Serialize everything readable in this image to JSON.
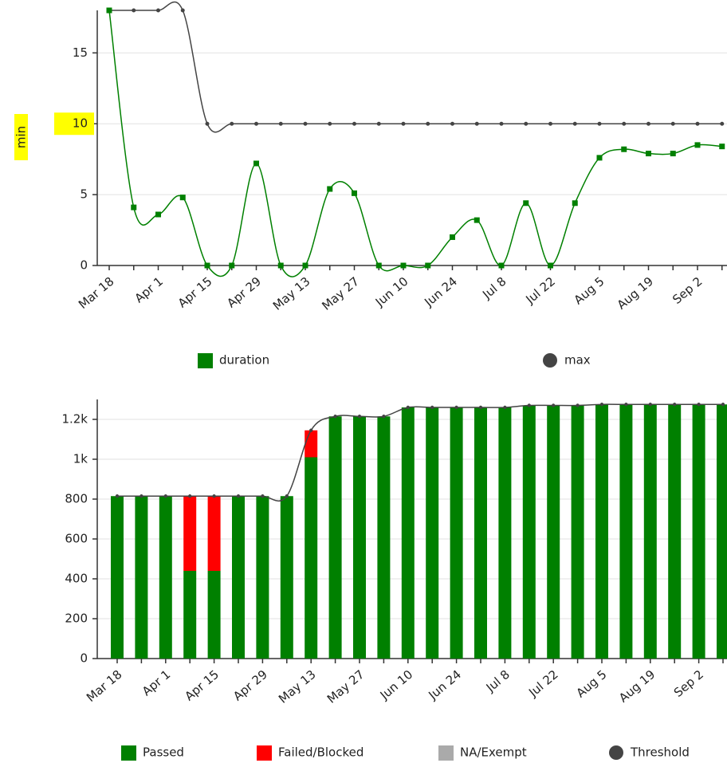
{
  "chart_data": [
    {
      "type": "line",
      "ylabel": "min",
      "highlight_color": "#ffff00",
      "categories": [
        "Mar 18",
        null,
        "Apr 1",
        null,
        "Apr 15",
        null,
        "Apr 29",
        null,
        "May 13",
        null,
        "May 27",
        null,
        "Jun 10",
        null,
        "Jun 24",
        null,
        "Jul 8",
        null,
        "Jul 22",
        null,
        "Aug 5",
        null,
        "Aug 19",
        null,
        "Sep 2",
        null
      ],
      "ylim": [
        0,
        18
      ],
      "yticks": [
        0,
        5,
        10,
        15
      ],
      "grid": true,
      "series": [
        {
          "name": "duration",
          "color": "#008000",
          "marker": "square",
          "values": [
            18,
            4.1,
            3.6,
            4.8,
            0,
            0,
            7.2,
            0,
            0,
            5.4,
            5.1,
            0,
            0,
            0,
            2,
            3.2,
            0,
            4.4,
            0,
            4.4,
            7.6,
            8.2,
            7.9,
            7.9,
            8.5,
            8.4
          ]
        },
        {
          "name": "max",
          "color": "#444444",
          "marker": "circle",
          "values": [
            18,
            18,
            18,
            18,
            10,
            10,
            10,
            10,
            10,
            10,
            10,
            10,
            10,
            10,
            10,
            10,
            10,
            10,
            10,
            10,
            10,
            10,
            10,
            10,
            10,
            10
          ]
        }
      ]
    },
    {
      "type": "stacked_bar",
      "categories": [
        "Mar 18",
        null,
        "Apr 1",
        null,
        "Apr 15",
        null,
        "Apr 29",
        null,
        "May 13",
        null,
        "May 27",
        null,
        "Jun 10",
        null,
        "Jun 24",
        null,
        "Jul 8",
        null,
        "Jul 22",
        null,
        "Aug 5",
        null,
        "Aug 19",
        null,
        "Sep 2",
        null
      ],
      "ylim": [
        0,
        1300
      ],
      "yticks": [
        0,
        200,
        400,
        600,
        800,
        {
          "value": 1000,
          "label": "1k"
        },
        {
          "value": 1200,
          "label": "1.2k"
        }
      ],
      "grid": true,
      "series": [
        {
          "name": "Passed",
          "color": "#008000",
          "values": [
            815,
            815,
            815,
            440,
            440,
            815,
            815,
            815,
            1010,
            1215,
            1215,
            1215,
            1260,
            1260,
            1260,
            1260,
            1260,
            1270,
            1270,
            1270,
            1275,
            1275,
            1275,
            1275,
            1275,
            1275
          ]
        },
        {
          "name": "Failed/Blocked",
          "color": "#ff0000",
          "values": [
            0,
            0,
            0,
            375,
            375,
            0,
            0,
            0,
            135,
            0,
            0,
            0,
            0,
            0,
            0,
            0,
            0,
            0,
            0,
            0,
            0,
            0,
            0,
            0,
            0,
            0
          ]
        },
        {
          "name": "NA/Exempt",
          "color": "#aaaaaa",
          "values": [
            0,
            0,
            0,
            0,
            0,
            0,
            0,
            0,
            0,
            0,
            0,
            0,
            0,
            0,
            0,
            0,
            0,
            0,
            0,
            0,
            0,
            0,
            0,
            0,
            0,
            0
          ]
        },
        {
          "name": "Threshold",
          "color": "#444444",
          "type": "line",
          "values": [
            815,
            815,
            815,
            815,
            815,
            815,
            815,
            815,
            1145,
            1215,
            1215,
            1215,
            1260,
            1260,
            1260,
            1260,
            1260,
            1270,
            1270,
            1270,
            1275,
            1275,
            1275,
            1275,
            1275,
            1275
          ]
        }
      ]
    }
  ]
}
